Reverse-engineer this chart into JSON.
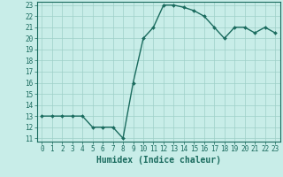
{
  "x": [
    0,
    1,
    2,
    3,
    4,
    5,
    6,
    7,
    8,
    9,
    10,
    11,
    12,
    13,
    14,
    15,
    16,
    17,
    18,
    19,
    20,
    21,
    22,
    23
  ],
  "y": [
    13,
    13,
    13,
    13,
    13,
    12,
    12,
    12,
    11,
    16,
    20,
    21,
    23,
    23,
    22.8,
    22.5,
    22,
    21,
    20,
    21,
    21,
    20.5,
    21,
    20.5
  ],
  "line_color": "#1a6b5e",
  "marker": "D",
  "marker_size": 2.0,
  "bg_color": "#c8ede8",
  "grid_color": "#9ecfc8",
  "xlabel": "Humidex (Indice chaleur)",
  "xlim": [
    -0.5,
    23.5
  ],
  "ylim": [
    10.7,
    23.3
  ],
  "yticks": [
    11,
    12,
    13,
    14,
    15,
    16,
    17,
    18,
    19,
    20,
    21,
    22,
    23
  ],
  "xticks": [
    0,
    1,
    2,
    3,
    4,
    5,
    6,
    7,
    8,
    9,
    10,
    11,
    12,
    13,
    14,
    15,
    16,
    17,
    18,
    19,
    20,
    21,
    22,
    23
  ],
  "tick_color": "#1a6b5e",
  "tick_fontsize": 5.5,
  "xlabel_fontsize": 7.0,
  "axis_color": "#1a6b5e",
  "linewidth": 1.0
}
